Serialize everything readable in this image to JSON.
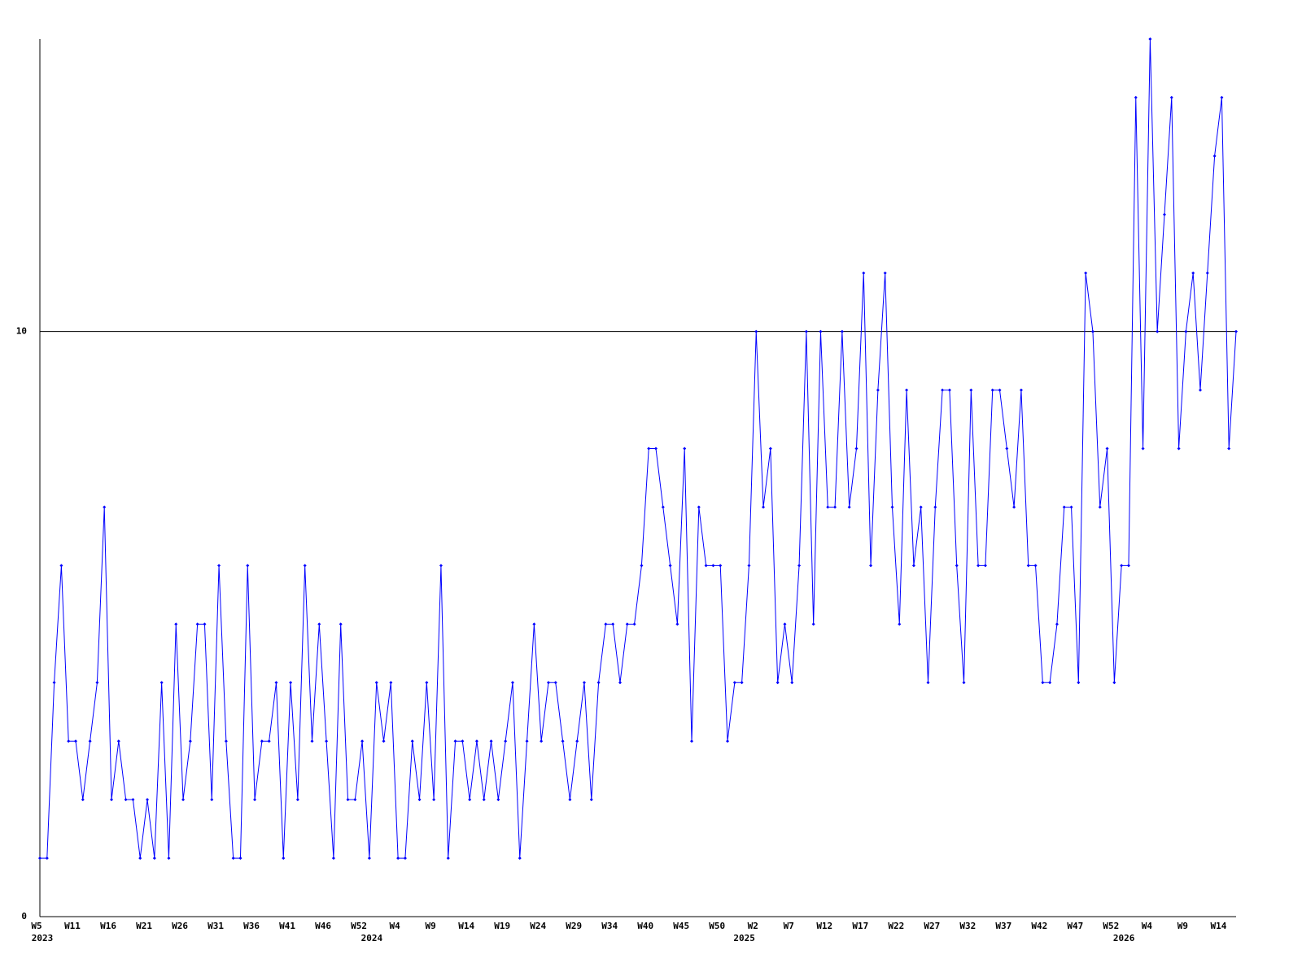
{
  "chart_data": {
    "type": "line",
    "categories": [
      "W5",
      null,
      null,
      null,
      null,
      "W11",
      null,
      null,
      null,
      null,
      "W16",
      null,
      null,
      null,
      null,
      "W21",
      null,
      null,
      null,
      null,
      "W26",
      null,
      null,
      null,
      null,
      "W31",
      null,
      null,
      null,
      null,
      "W36",
      null,
      null,
      null,
      null,
      "W41",
      null,
      null,
      null,
      null,
      "W46",
      null,
      null,
      null,
      null,
      "W52",
      null,
      null,
      null,
      null,
      "W4",
      null,
      null,
      null,
      null,
      "W9",
      null,
      null,
      null,
      null,
      "W14",
      null,
      null,
      null,
      null,
      "W19",
      null,
      null,
      null,
      null,
      "W24",
      null,
      null,
      null,
      null,
      "W29",
      null,
      null,
      null,
      null,
      "W34",
      null,
      null,
      null,
      null,
      "W40",
      null,
      null,
      null,
      null,
      "W45",
      null,
      null,
      null,
      null,
      "W50",
      null,
      null,
      null,
      null,
      "W2",
      null,
      null,
      null,
      null,
      "W7",
      null,
      null,
      null,
      null,
      "W12",
      null,
      null,
      null,
      null,
      "W17",
      null,
      null,
      null,
      null,
      "W22",
      null,
      null,
      null,
      null,
      "W27",
      null,
      null,
      null,
      null,
      "W32",
      null,
      null,
      null,
      null,
      "W37",
      null,
      null,
      null,
      null,
      "W42",
      null,
      null,
      null,
      null,
      "W47",
      null,
      null,
      null,
      null,
      "W52",
      null,
      null,
      null,
      null,
      "W4",
      null,
      null,
      null,
      null,
      "W9",
      null,
      null,
      null,
      null,
      "W14",
      null,
      null
    ],
    "x_groups": [
      {
        "label": "2023",
        "index": 0
      },
      {
        "label": "2024",
        "index": 46
      },
      {
        "label": "2025",
        "index": 98
      },
      {
        "label": "2026",
        "index": 151
      }
    ],
    "values": [
      1,
      1,
      4,
      6,
      3,
      3,
      2,
      3,
      4,
      7,
      2,
      3,
      2,
      2,
      1,
      2,
      1,
      4,
      1,
      5,
      2,
      3,
      5,
      5,
      2,
      6,
      3,
      1,
      1,
      6,
      2,
      3,
      3,
      4,
      1,
      4,
      2,
      6,
      3,
      5,
      3,
      1,
      5,
      2,
      2,
      3,
      1,
      4,
      3,
      4,
      1,
      1,
      3,
      2,
      4,
      2,
      6,
      1,
      3,
      3,
      2,
      3,
      2,
      3,
      2,
      3,
      4,
      1,
      3,
      5,
      3,
      4,
      4,
      3,
      2,
      3,
      4,
      2,
      4,
      5,
      5,
      4,
      5,
      5,
      6,
      8,
      8,
      7,
      6,
      5,
      8,
      3,
      7,
      6,
      6,
      6,
      3,
      4,
      4,
      6,
      10,
      7,
      8,
      4,
      5,
      4,
      6,
      10,
      5,
      10,
      7,
      7,
      10,
      7,
      8,
      11,
      6,
      9,
      11,
      7,
      5,
      9,
      6,
      7,
      4,
      7,
      9,
      9,
      6,
      4,
      9,
      6,
      6,
      9,
      9,
      8,
      7,
      9,
      6,
      6,
      4,
      4,
      5,
      7,
      7,
      4,
      11,
      10,
      7,
      8,
      4,
      6,
      6,
      14,
      8,
      15,
      10,
      12,
      14,
      8,
      10,
      11,
      9,
      11,
      13,
      14,
      8,
      10
    ],
    "color": "#0000ff",
    "ylim": [
      0,
      15
    ],
    "yticks": [
      0,
      10
    ],
    "grid": true
  }
}
